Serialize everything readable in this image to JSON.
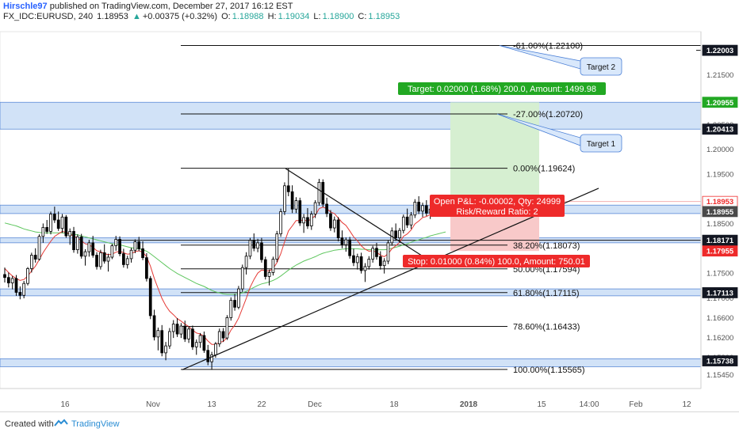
{
  "header": {
    "author": "Hirschle97",
    "published": "published on TradingView.com, December 27, 2017 16:12 EST",
    "symbol": "FX_IDC:EURUSD, 240",
    "last": "1.18953",
    "change_arrow": "▲",
    "change": "+0.00375 (+0.32%)",
    "o_label": "O:",
    "o": "1.18988",
    "h_label": "H:",
    "h": "1.19034",
    "l_label": "L:",
    "l": "1.18900",
    "c_label": "C:",
    "c": "1.18953"
  },
  "footer": {
    "created_with": "Created with",
    "brand": "TradingView"
  },
  "colors": {
    "up": "#26a69a",
    "candle": "#000000",
    "zone_fill": "#c6dbf5",
    "zone_stroke": "#5b8ad6",
    "ema_fast": "#e53935",
    "ema_slow": "#5ec65e",
    "target_fill": "#d6efd1",
    "stop_fill": "#f8c9c9",
    "target_label": "#22a823",
    "stop_label": "#ee2a2a",
    "callout_fill": "#d9e8fb",
    "callout_stroke": "#4a7fd6"
  },
  "chart_data": {
    "type": "candlestick",
    "symbol": "FX_IDC:EURUSD",
    "timeframe": "240",
    "ylim": [
      1.1518,
      1.2238
    ],
    "y_ticks": [
      "1.21500",
      "1.21000",
      "1.20500",
      "1.20000",
      "1.19500",
      "1.19000",
      "1.18500",
      "1.18000",
      "1.17500",
      "1.17000",
      "1.16600",
      "1.16200",
      "1.15800",
      "1.15450"
    ],
    "y_tick_values": [
      1.215,
      1.21,
      1.205,
      1.2,
      1.195,
      1.19,
      1.185,
      1.18,
      1.175,
      1.17,
      1.166,
      1.162,
      1.158,
      1.1545
    ],
    "x_ticks": [
      "16",
      "Nov",
      "13",
      "22",
      "Dec",
      "18",
      "2018",
      "15",
      "14:00",
      "Feb",
      "12"
    ],
    "x_tick_bold": [
      false,
      false,
      false,
      false,
      false,
      false,
      true,
      false,
      false,
      false,
      false
    ],
    "price_labels": [
      {
        "value": "1.22003",
        "y": 1.22003,
        "style": "dark"
      },
      {
        "value": "1.20955",
        "y": 1.20955,
        "style": "green"
      },
      {
        "value": "1.20413",
        "y": 1.20413,
        "style": "dark"
      },
      {
        "value": "1.18953",
        "y": 1.18953,
        "style": "outline"
      },
      {
        "value": "1.18955",
        "y": 1.1875,
        "style": "gray"
      },
      {
        "value": "1.18171",
        "y": 1.18171,
        "style": "dark"
      },
      {
        "value": "1.17955",
        "y": 1.17955,
        "style": "red"
      },
      {
        "value": "1.17113",
        "y": 1.17113,
        "style": "dark"
      },
      {
        "value": "1.15738",
        "y": 1.15738,
        "style": "dark"
      }
    ],
    "fib_levels": [
      {
        "label": "-61.00%(1.22100)",
        "y": 1.221
      },
      {
        "label": "-27.00%(1.20720)",
        "y": 1.2072
      },
      {
        "label": "0.00%(1.19624)",
        "y": 1.19624
      },
      {
        "label": "38.20%(1.18073)",
        "y": 1.18073
      },
      {
        "label": "50.00%(1.17594)",
        "y": 1.17594
      },
      {
        "label": "61.80%(1.17115)",
        "y": 1.17115
      },
      {
        "label": "78.60%(1.16433)",
        "y": 1.16433
      },
      {
        "label": "100.00%(1.15565)",
        "y": 1.15565
      }
    ],
    "zones": [
      {
        "from": 1.20413,
        "to": 1.20955
      },
      {
        "from": 1.1871,
        "to": 1.1888
      },
      {
        "from": 1.1812,
        "to": 1.1822
      },
      {
        "from": 1.1705,
        "to": 1.1719
      },
      {
        "from": 1.1562,
        "to": 1.1578
      }
    ],
    "position": {
      "target_label": "Target: 0.02000 (1.68%) 200.0, Amount: 1499.98",
      "stop_label": "Stop: 0.01000 (0.84%) 100.0, Amount: 750.01",
      "pnl_label": "Open P&L: -0.00002, Qty: 24999",
      "rr_label": "Risk/Reward Ratio: 2",
      "entry": 1.18955,
      "target": 1.20955,
      "stop": 1.17955
    },
    "callouts": [
      "Target 2",
      "Target 1"
    ],
    "candles": [
      [
        1.1748,
        1.1762,
        1.1732,
        1.1742
      ],
      [
        1.1742,
        1.1752,
        1.1722,
        1.1731
      ],
      [
        1.1731,
        1.1745,
        1.1718,
        1.174
      ],
      [
        1.174,
        1.1747,
        1.1705,
        1.1712
      ],
      [
        1.1712,
        1.1724,
        1.1698,
        1.1706
      ],
      [
        1.1706,
        1.1735,
        1.17,
        1.173
      ],
      [
        1.173,
        1.1763,
        1.1726,
        1.176
      ],
      [
        1.176,
        1.1792,
        1.1752,
        1.1787
      ],
      [
        1.1787,
        1.1801,
        1.1772,
        1.1779
      ],
      [
        1.1779,
        1.1829,
        1.1776,
        1.1825
      ],
      [
        1.1825,
        1.1851,
        1.1812,
        1.1843
      ],
      [
        1.1843,
        1.1858,
        1.183,
        1.1835
      ],
      [
        1.1835,
        1.1875,
        1.1829,
        1.187
      ],
      [
        1.187,
        1.1885,
        1.1852,
        1.1858
      ],
      [
        1.1858,
        1.1875,
        1.1836,
        1.1841
      ],
      [
        1.1841,
        1.187,
        1.1832,
        1.1864
      ],
      [
        1.1864,
        1.1868,
        1.1822,
        1.1826
      ],
      [
        1.1826,
        1.1841,
        1.1808,
        1.1835
      ],
      [
        1.1835,
        1.1844,
        1.1792,
        1.1798
      ],
      [
        1.1798,
        1.1829,
        1.179,
        1.1824
      ],
      [
        1.1824,
        1.183,
        1.178,
        1.1785
      ],
      [
        1.1785,
        1.1799,
        1.1766,
        1.1794
      ],
      [
        1.1794,
        1.1818,
        1.1784,
        1.1812
      ],
      [
        1.1812,
        1.1826,
        1.1782,
        1.1787
      ],
      [
        1.1787,
        1.1793,
        1.1758,
        1.1764
      ],
      [
        1.1764,
        1.1798,
        1.1758,
        1.1792
      ],
      [
        1.1792,
        1.1809,
        1.177,
        1.1775
      ],
      [
        1.1775,
        1.179,
        1.1754,
        1.1783
      ],
      [
        1.1783,
        1.181,
        1.1779,
        1.1806
      ],
      [
        1.1806,
        1.1826,
        1.1796,
        1.1819
      ],
      [
        1.1819,
        1.1825,
        1.1785,
        1.179
      ],
      [
        1.179,
        1.18,
        1.1762,
        1.1768
      ],
      [
        1.1768,
        1.1786,
        1.176,
        1.178
      ],
      [
        1.178,
        1.1802,
        1.1772,
        1.1797
      ],
      [
        1.1797,
        1.1819,
        1.1791,
        1.1814
      ],
      [
        1.1814,
        1.1824,
        1.1795,
        1.18
      ],
      [
        1.18,
        1.1815,
        1.1777,
        1.1782
      ],
      [
        1.1782,
        1.1791,
        1.1734,
        1.174
      ],
      [
        1.174,
        1.1745,
        1.1658,
        1.1665
      ],
      [
        1.1665,
        1.1677,
        1.1615,
        1.1622
      ],
      [
        1.1622,
        1.1641,
        1.1595,
        1.1635
      ],
      [
        1.1635,
        1.1646,
        1.1583,
        1.159
      ],
      [
        1.159,
        1.1612,
        1.1575,
        1.1604
      ],
      [
        1.1604,
        1.164,
        1.1598,
        1.1633
      ],
      [
        1.1633,
        1.1656,
        1.162,
        1.1648
      ],
      [
        1.1648,
        1.166,
        1.1622,
        1.1628
      ],
      [
        1.1628,
        1.165,
        1.162,
        1.1644
      ],
      [
        1.1644,
        1.1655,
        1.1612,
        1.1618
      ],
      [
        1.1618,
        1.1644,
        1.161,
        1.1638
      ],
      [
        1.1638,
        1.1645,
        1.1596,
        1.1602
      ],
      [
        1.1602,
        1.1617,
        1.1586,
        1.1611
      ],
      [
        1.1611,
        1.163,
        1.16,
        1.1625
      ],
      [
        1.1625,
        1.1633,
        1.159,
        1.1595
      ],
      [
        1.1595,
        1.1606,
        1.1565,
        1.1572
      ],
      [
        1.1572,
        1.1592,
        1.1556,
        1.1586
      ],
      [
        1.1586,
        1.1612,
        1.158,
        1.1608
      ],
      [
        1.1608,
        1.1639,
        1.1602,
        1.1633
      ],
      [
        1.1633,
        1.164,
        1.1612,
        1.162
      ],
      [
        1.162,
        1.1666,
        1.1616,
        1.1661
      ],
      [
        1.1661,
        1.1702,
        1.1655,
        1.1696
      ],
      [
        1.1696,
        1.1709,
        1.1675,
        1.1682
      ],
      [
        1.1682,
        1.1725,
        1.1678,
        1.1719
      ],
      [
        1.1719,
        1.1768,
        1.1713,
        1.1762
      ],
      [
        1.1762,
        1.1793,
        1.1748,
        1.1785
      ],
      [
        1.1785,
        1.1822,
        1.1779,
        1.1817
      ],
      [
        1.1817,
        1.1831,
        1.1795,
        1.1801
      ],
      [
        1.1801,
        1.182,
        1.1793,
        1.1812
      ],
      [
        1.1812,
        1.1822,
        1.1772,
        1.1778
      ],
      [
        1.1778,
        1.1784,
        1.1738,
        1.1744
      ],
      [
        1.1744,
        1.1758,
        1.1726,
        1.1752
      ],
      [
        1.1752,
        1.1784,
        1.1746,
        1.1779
      ],
      [
        1.1779,
        1.1836,
        1.1773,
        1.183
      ],
      [
        1.183,
        1.1881,
        1.1824,
        1.1875
      ],
      [
        1.1875,
        1.1934,
        1.1868,
        1.1927
      ],
      [
        1.1927,
        1.1962,
        1.1906,
        1.1915
      ],
      [
        1.1915,
        1.1928,
        1.1872,
        1.188
      ],
      [
        1.188,
        1.1904,
        1.1872,
        1.1897
      ],
      [
        1.1897,
        1.1903,
        1.1846,
        1.1852
      ],
      [
        1.1852,
        1.187,
        1.1832,
        1.1863
      ],
      [
        1.1863,
        1.1882,
        1.184,
        1.1846
      ],
      [
        1.1846,
        1.1876,
        1.1838,
        1.187
      ],
      [
        1.187,
        1.1898,
        1.1862,
        1.1893
      ],
      [
        1.1893,
        1.1941,
        1.1887,
        1.1934
      ],
      [
        1.1934,
        1.194,
        1.1884,
        1.189
      ],
      [
        1.189,
        1.1903,
        1.1864,
        1.1871
      ],
      [
        1.1871,
        1.1878,
        1.1836,
        1.1842
      ],
      [
        1.1842,
        1.1865,
        1.1833,
        1.1858
      ],
      [
        1.1858,
        1.1864,
        1.1815,
        1.1822
      ],
      [
        1.1822,
        1.1837,
        1.1801,
        1.1808
      ],
      [
        1.1808,
        1.1823,
        1.1794,
        1.1818
      ],
      [
        1.1818,
        1.1824,
        1.178,
        1.1786
      ],
      [
        1.1786,
        1.18,
        1.1765,
        1.1772
      ],
      [
        1.1772,
        1.179,
        1.1758,
        1.1784
      ],
      [
        1.1784,
        1.1792,
        1.175,
        1.1756
      ],
      [
        1.1756,
        1.1771,
        1.1733,
        1.1764
      ],
      [
        1.1764,
        1.1785,
        1.1758,
        1.1779
      ],
      [
        1.1779,
        1.1806,
        1.1772,
        1.1801
      ],
      [
        1.1801,
        1.1812,
        1.1778,
        1.1784
      ],
      [
        1.1784,
        1.1795,
        1.1758,
        1.1766
      ],
      [
        1.1766,
        1.1781,
        1.175,
        1.1775
      ],
      [
        1.1775,
        1.1817,
        1.1769,
        1.1812
      ],
      [
        1.1812,
        1.1843,
        1.1806,
        1.1836
      ],
      [
        1.1836,
        1.1851,
        1.1816,
        1.1822
      ],
      [
        1.1822,
        1.1842,
        1.1812,
        1.1837
      ],
      [
        1.1837,
        1.1869,
        1.1831,
        1.1864
      ],
      [
        1.1864,
        1.1881,
        1.1842,
        1.1848
      ],
      [
        1.1848,
        1.1874,
        1.184,
        1.1868
      ],
      [
        1.1868,
        1.19,
        1.1862,
        1.1894
      ],
      [
        1.1894,
        1.1906,
        1.187,
        1.1876
      ],
      [
        1.1876,
        1.1893,
        1.1864,
        1.1887
      ],
      [
        1.1887,
        1.1898,
        1.1866,
        1.1872
      ],
      [
        1.1872,
        1.1886,
        1.186,
        1.188
      ],
      [
        1.188,
        1.1894,
        1.1872,
        1.189
      ],
      [
        1.189,
        1.1898,
        1.188,
        1.1886
      ],
      [
        1.1886,
        1.1899,
        1.1881,
        1.1893
      ],
      [
        1.1893,
        1.1903,
        1.189,
        1.1895
      ]
    ],
    "ema_fast": [
      1.176,
      1.1752,
      1.1745,
      1.174,
      1.1736,
      1.1738,
      1.1745,
      1.1755,
      1.1765,
      1.1778,
      1.1792,
      1.1804,
      1.1815,
      1.1825,
      1.183,
      1.1835,
      1.1833,
      1.183,
      1.1825,
      1.1822,
      1.1816,
      1.181,
      1.1808,
      1.1803,
      1.1796,
      1.1794,
      1.179,
      1.1788,
      1.1789,
      1.1793,
      1.1795,
      1.1792,
      1.1789,
      1.179,
      1.1794,
      1.1796,
      1.1793,
      1.1784,
      1.1765,
      1.174,
      1.172,
      1.17,
      1.1685,
      1.1674,
      1.1667,
      1.1659,
      1.1654,
      1.1648,
      1.1643,
      1.1636,
      1.163,
      1.1628,
      1.1623,
      1.1614,
      1.1607,
      1.1607,
      1.1611,
      1.1613,
      1.1621,
      1.1636,
      1.1646,
      1.166,
      1.168,
      1.17,
      1.1722,
      1.1738,
      1.1751,
      1.1757,
      1.1756,
      1.1755,
      1.176,
      1.1772,
      1.179,
      1.1814,
      1.1836,
      1.1846,
      1.1857,
      1.1857,
      1.1858,
      1.1856,
      1.186,
      1.1867,
      1.1881,
      1.1884,
      1.1881,
      1.1874,
      1.1871,
      1.1862,
      1.1853,
      1.1847,
      1.1836,
      1.1824,
      1.1816,
      1.1806,
      1.1799,
      1.1795,
      1.1796,
      1.1793,
      1.1787,
      1.1784,
      1.179,
      1.18,
      1.1806,
      1.1813,
      1.1825,
      1.183,
      1.1838,
      1.185,
      1.1856,
      1.1863,
      1.1865,
      1.1869,
      1.1873,
      1.1876,
      1.1879,
      1.1883
    ],
    "ema_slow": [
      1.1852,
      1.185,
      1.1848,
      1.1846,
      1.1843,
      1.184,
      1.1838,
      1.1836,
      1.1834,
      1.1833,
      1.1832,
      1.1832,
      1.1832,
      1.1832,
      1.1832,
      1.1832,
      1.1831,
      1.183,
      1.1829,
      1.1828,
      1.1826,
      1.1824,
      1.1822,
      1.182,
      1.1818,
      1.1816,
      1.1814,
      1.1812,
      1.181,
      1.1809,
      1.1808,
      1.1806,
      1.1804,
      1.1802,
      1.1801,
      1.18,
      1.1798,
      1.1795,
      1.179,
      1.1784,
      1.1778,
      1.1772,
      1.1766,
      1.176,
      1.1755,
      1.175,
      1.1746,
      1.1742,
      1.1738,
      1.1734,
      1.173,
      1.1727,
      1.1724,
      1.172,
      1.1716,
      1.1713,
      1.1711,
      1.1709,
      1.1708,
      1.1708,
      1.1708,
      1.1709,
      1.1711,
      1.1714,
      1.1718,
      1.1722,
      1.1726,
      1.1729,
      1.1731,
      1.1733,
      1.1736,
      1.174,
      1.1745,
      1.1751,
      1.1757,
      1.1762,
      1.1767,
      1.1771,
      1.1775,
      1.1778,
      1.1781,
      1.1784,
      1.1788,
      1.1791,
      1.1793,
      1.1795,
      1.1797,
      1.1798,
      1.1799,
      1.18,
      1.18,
      1.18,
      1.18,
      1.1799,
      1.1799,
      1.1798,
      1.1798,
      1.1798,
      1.1798,
      1.1798,
      1.1799,
      1.1801,
      1.1803,
      1.1805,
      1.1808,
      1.181,
      1.1813,
      1.1816,
      1.1818,
      1.1821,
      1.1823,
      1.1826,
      1.1828,
      1.183,
      1.1832,
      1.1834
    ]
  }
}
